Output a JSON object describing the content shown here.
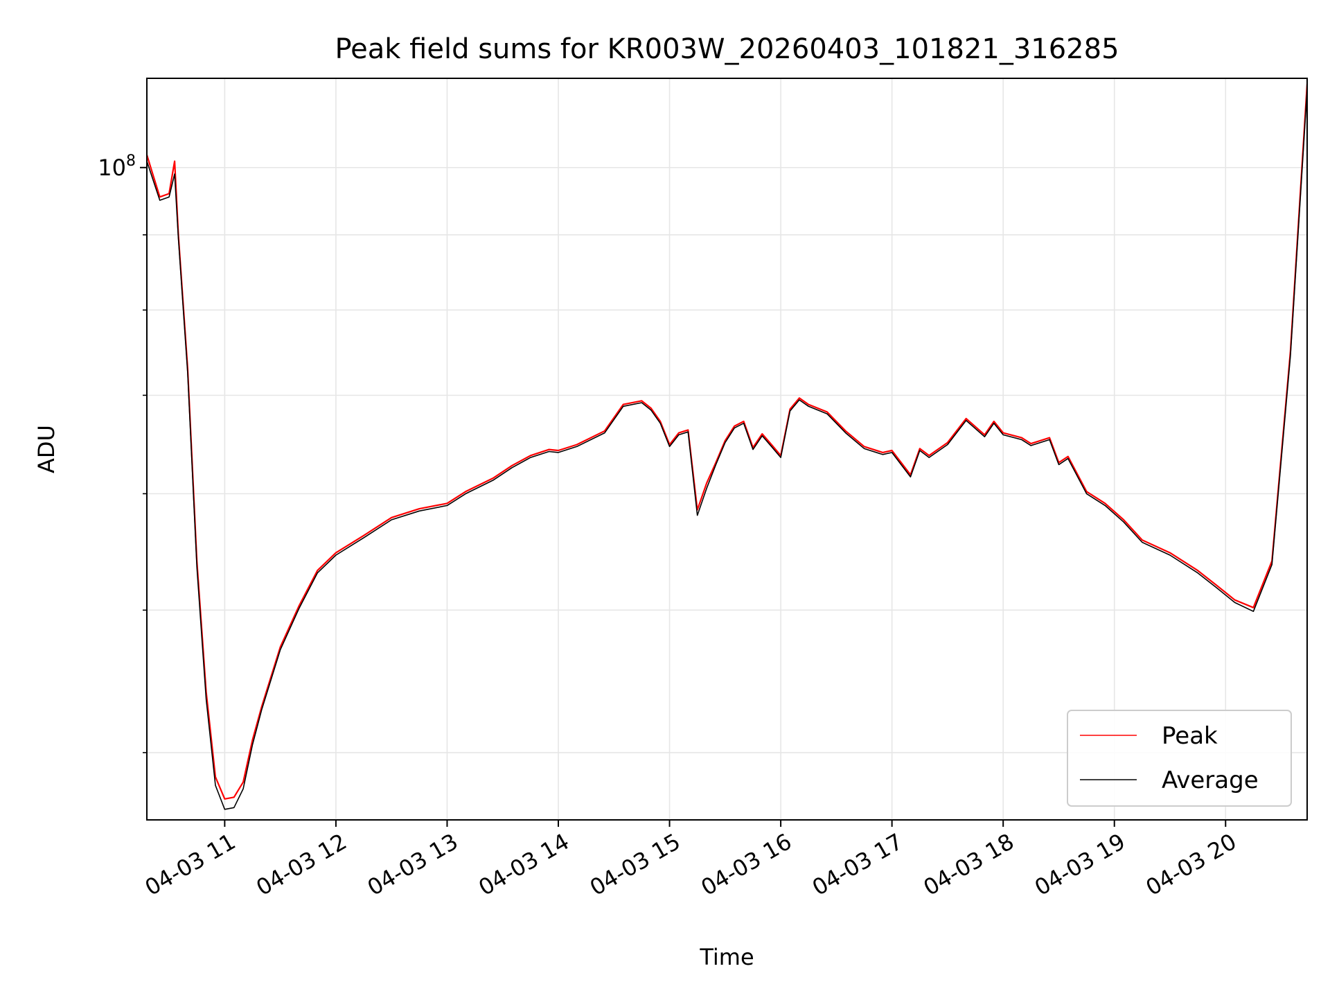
{
  "chart_data": {
    "type": "line",
    "title": "Peak field sums for KR003W_20260403_101821_316285",
    "xlabel": "Time",
    "ylabel": "ADU",
    "yscale": "log",
    "ylim": [
      36000000.0,
      115000000.0
    ],
    "xlim": [
      "04-03 10:18",
      "04-03 20:44"
    ],
    "x_ticks": [
      "04-03 11",
      "04-03 12",
      "04-03 13",
      "04-03 14",
      "04-03 15",
      "04-03 16",
      "04-03 17",
      "04-03 18",
      "04-03 19",
      "04-03 20"
    ],
    "y_tick_labels": [
      {
        "value": 100000000.0,
        "base": "10",
        "exp": "8"
      }
    ],
    "y_minor_ticks": [
      40000000.0,
      50000000.0,
      60000000.0,
      70000000.0,
      80000000.0,
      90000000.0
    ],
    "grid": true,
    "legend_position": "lower right",
    "x": [
      "04-03 10:18",
      "04-03 10:25",
      "04-03 10:30",
      "04-03 10:33",
      "04-03 10:35",
      "04-03 10:40",
      "04-03 10:45",
      "04-03 10:50",
      "04-03 10:55",
      "04-03 11:00",
      "04-03 11:05",
      "04-03 11:10",
      "04-03 11:15",
      "04-03 11:20",
      "04-03 11:30",
      "04-03 11:40",
      "04-03 11:50",
      "04-03 12:00",
      "04-03 12:15",
      "04-03 12:30",
      "04-03 12:45",
      "04-03 13:00",
      "04-03 13:10",
      "04-03 13:25",
      "04-03 13:35",
      "04-03 13:45",
      "04-03 13:55",
      "04-03 14:00",
      "04-03 14:10",
      "04-03 14:25",
      "04-03 14:35",
      "04-03 14:45",
      "04-03 14:50",
      "04-03 14:55",
      "04-03 15:00",
      "04-03 15:05",
      "04-03 15:10",
      "04-03 15:15",
      "04-03 15:20",
      "04-03 15:25",
      "04-03 15:30",
      "04-03 15:35",
      "04-03 15:40",
      "04-03 15:45",
      "04-03 15:50",
      "04-03 15:55",
      "04-03 16:00",
      "04-03 16:05",
      "04-03 16:10",
      "04-03 16:15",
      "04-03 16:25",
      "04-03 16:35",
      "04-03 16:45",
      "04-03 16:55",
      "04-03 17:00",
      "04-03 17:10",
      "04-03 17:15",
      "04-03 17:20",
      "04-03 17:30",
      "04-03 17:40",
      "04-03 17:50",
      "04-03 17:55",
      "04-03 18:00",
      "04-03 18:10",
      "04-03 18:15",
      "04-03 18:25",
      "04-03 18:30",
      "04-03 18:35",
      "04-03 18:45",
      "04-03 18:55",
      "04-03 19:05",
      "04-03 19:15",
      "04-03 19:30",
      "04-03 19:45",
      "04-03 19:55",
      "04-03 20:05",
      "04-03 20:15",
      "04-03 20:25",
      "04-03 20:35",
      "04-03 20:44"
    ],
    "series": [
      {
        "name": "Peak",
        "color": "#ff0000",
        "values": [
          102000000.0,
          95500000.0,
          96000000.0,
          101000000.0,
          90000000.0,
          73000000.0,
          54000000.0,
          44000000.0,
          38500000.0,
          37200000.0,
          37300000.0,
          38200000.0,
          40800000.0,
          43000000.0,
          47200000.0,
          50300000.0,
          53200000.0,
          54700000.0,
          56200000.0,
          57800000.0,
          58600000.0,
          59100000.0,
          60200000.0,
          61500000.0,
          62700000.0,
          63700000.0,
          64300000.0,
          64200000.0,
          64800000.0,
          66200000.0,
          69000000.0,
          69400000.0,
          68600000.0,
          67200000.0,
          64800000.0,
          66000000.0,
          66300000.0,
          58500000.0,
          61000000.0,
          63000000.0,
          65200000.0,
          66700000.0,
          67200000.0,
          64500000.0,
          65900000.0,
          64800000.0,
          63700000.0,
          68500000.0,
          69700000.0,
          69000000.0,
          68200000.0,
          66200000.0,
          64600000.0,
          64000000.0,
          64200000.0,
          61800000.0,
          64400000.0,
          63700000.0,
          65000000.0,
          67500000.0,
          65800000.0,
          67200000.0,
          66000000.0,
          65500000.0,
          64900000.0,
          65500000.0,
          63000000.0,
          63600000.0,
          60200000.0,
          59100000.0,
          57600000.0,
          55800000.0,
          54700000.0,
          53200000.0,
          52000000.0,
          50800000.0,
          50200000.0,
          54000000.0,
          75000000.0,
          114000000.0
        ]
      },
      {
        "name": "Average",
        "color": "#000000",
        "values": [
          101000000.0,
          95000000.0,
          95500000.0,
          99000000.0,
          89500000.0,
          72500000.0,
          53500000.0,
          43500000.0,
          38000000.0,
          36600000.0,
          36700000.0,
          37800000.0,
          40500000.0,
          42800000.0,
          47000000.0,
          50100000.0,
          53000000.0,
          54500000.0,
          56000000.0,
          57600000.0,
          58400000.0,
          58900000.0,
          60000000.0,
          61300000.0,
          62500000.0,
          63500000.0,
          64100000.0,
          64000000.0,
          64600000.0,
          66000000.0,
          68800000.0,
          69200000.0,
          68400000.0,
          67000000.0,
          64600000.0,
          65800000.0,
          66100000.0,
          58000000.0,
          60500000.0,
          62800000.0,
          65000000.0,
          66500000.0,
          67000000.0,
          64300000.0,
          65700000.0,
          64600000.0,
          63500000.0,
          68300000.0,
          69500000.0,
          68800000.0,
          68000000.0,
          66000000.0,
          64400000.0,
          63800000.0,
          64000000.0,
          61600000.0,
          64200000.0,
          63500000.0,
          64800000.0,
          67300000.0,
          65600000.0,
          67000000.0,
          65800000.0,
          65300000.0,
          64700000.0,
          65300000.0,
          62800000.0,
          63400000.0,
          60000000.0,
          58900000.0,
          57400000.0,
          55600000.0,
          54500000.0,
          53000000.0,
          51800000.0,
          50600000.0,
          49900000.0,
          53700000.0,
          74500000.0,
          113000000.0
        ]
      }
    ]
  }
}
